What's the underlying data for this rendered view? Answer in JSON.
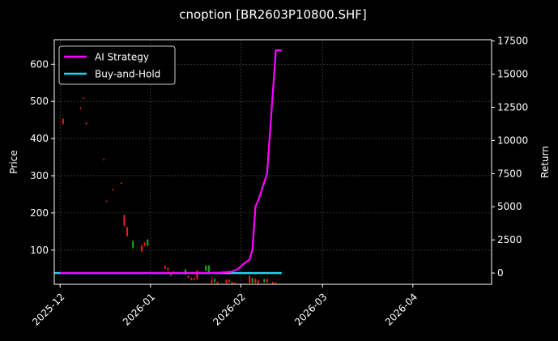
{
  "chart_data": {
    "type": "line",
    "title": "cnoption [BR2603P10800.SHF]",
    "ylabel": "Price",
    "y2label": "Return",
    "x_ticks": [
      "2025-12",
      "2026-01",
      "2026-02",
      "2026-03",
      "2026-04"
    ],
    "y_ticks": [
      100,
      200,
      300,
      400,
      500,
      600
    ],
    "y2_ticks": [
      0,
      2500,
      5000,
      7500,
      10000,
      12500,
      15000,
      17500
    ],
    "xlim": [
      "2025-11-29",
      "2026-04-28"
    ],
    "ylim": [
      8,
      666
    ],
    "y2lim": [
      -850,
      17600
    ],
    "grid": true,
    "legend": "top-left",
    "colors": {
      "background": "#000000",
      "ai_strategy": "#ff00ff",
      "buy_and_hold": "#22d3e6",
      "candle_up": "#19a319",
      "candle_down": "#e01e1e",
      "grid": "#555555"
    },
    "series": [
      {
        "name": "AI Strategy",
        "axis": "right",
        "points": [
          [
            "2025-12-01",
            0
          ],
          [
            "2026-01-01",
            0
          ],
          [
            "2026-01-21",
            0
          ],
          [
            "2026-01-25",
            30
          ],
          [
            "2026-01-29",
            100
          ],
          [
            "2026-01-31",
            300
          ],
          [
            "2026-02-01",
            500
          ],
          [
            "2026-02-02",
            700
          ],
          [
            "2026-02-04",
            1000
          ],
          [
            "2026-02-05",
            1800
          ],
          [
            "2026-02-06",
            5000
          ],
          [
            "2026-02-07",
            5500
          ],
          [
            "2026-02-10",
            7500
          ],
          [
            "2026-02-13",
            16800
          ],
          [
            "2026-02-15",
            16800
          ]
        ]
      },
      {
        "name": "Buy-and-Hold",
        "axis": "right",
        "points": [
          [
            "2025-11-29",
            0
          ],
          [
            "2026-02-15",
            0
          ]
        ]
      }
    ],
    "candles": [
      {
        "date": "2025-12-02",
        "open": 452,
        "high": 456,
        "low": 436,
        "close": 440
      },
      {
        "date": "2025-12-08",
        "open": 482,
        "high": 484,
        "low": 478,
        "close": 480
      },
      {
        "date": "2025-12-09",
        "open": 509,
        "high": 511,
        "low": 507,
        "close": 508
      },
      {
        "date": "2025-12-10",
        "open": 442,
        "high": 444,
        "low": 438,
        "close": 440
      },
      {
        "date": "2025-12-16",
        "open": 344,
        "high": 346,
        "low": 342,
        "close": 343
      },
      {
        "date": "2025-12-17",
        "open": 232,
        "high": 234,
        "low": 230,
        "close": 231
      },
      {
        "date": "2025-12-19",
        "open": 263,
        "high": 265,
        "low": 261,
        "close": 262
      },
      {
        "date": "2025-12-22",
        "open": 280,
        "high": 282,
        "low": 278,
        "close": 279
      },
      {
        "date": "2025-12-23",
        "open": 194,
        "high": 196,
        "low": 163,
        "close": 166
      },
      {
        "date": "2025-12-24",
        "open": 161,
        "high": 163,
        "low": 136,
        "close": 138
      },
      {
        "date": "2025-12-26",
        "open": 106,
        "high": 126,
        "low": 104,
        "close": 124
      },
      {
        "date": "2025-12-29",
        "open": 112,
        "high": 114,
        "low": 95,
        "close": 97
      },
      {
        "date": "2025-12-30",
        "open": 120,
        "high": 122,
        "low": 110,
        "close": 112
      },
      {
        "date": "2025-12-31",
        "open": 112,
        "high": 130,
        "low": 110,
        "close": 128
      },
      {
        "date": "2026-01-06",
        "open": 57,
        "high": 59,
        "low": 48,
        "close": 50
      },
      {
        "date": "2026-01-07",
        "open": 52,
        "high": 54,
        "low": 44,
        "close": 46
      },
      {
        "date": "2026-01-08",
        "open": 36,
        "high": 40,
        "low": 30,
        "close": 32
      },
      {
        "date": "2026-01-09",
        "open": 40,
        "high": 44,
        "low": 36,
        "close": 38
      },
      {
        "date": "2026-01-13",
        "open": 35,
        "high": 50,
        "low": 33,
        "close": 48
      },
      {
        "date": "2026-01-14",
        "open": 30,
        "high": 32,
        "low": 24,
        "close": 26
      },
      {
        "date": "2026-01-15",
        "open": 25,
        "high": 27,
        "low": 18,
        "close": 20
      },
      {
        "date": "2026-01-16",
        "open": 24,
        "high": 26,
        "low": 18,
        "close": 20
      },
      {
        "date": "2026-01-17",
        "open": 45,
        "high": 47,
        "low": 20,
        "close": 22
      },
      {
        "date": "2026-01-20",
        "open": 45,
        "high": 60,
        "low": 43,
        "close": 58
      },
      {
        "date": "2026-01-21",
        "open": 40,
        "high": 60,
        "low": 38,
        "close": 58
      },
      {
        "date": "2026-01-22",
        "open": 20,
        "high": 30,
        "low": 10,
        "close": 12
      },
      {
        "date": "2026-01-23",
        "open": 15,
        "high": 24,
        "low": 8,
        "close": 22
      },
      {
        "date": "2026-01-24",
        "open": 14,
        "high": 16,
        "low": 8,
        "close": 10
      },
      {
        "date": "2026-01-27",
        "open": 20,
        "high": 22,
        "low": 10,
        "close": 12
      },
      {
        "date": "2026-01-28",
        "open": 20,
        "high": 22,
        "low": 12,
        "close": 14
      },
      {
        "date": "2026-01-29",
        "open": 14,
        "high": 16,
        "low": 8,
        "close": 10
      },
      {
        "date": "2026-01-30",
        "open": 12,
        "high": 14,
        "low": 8,
        "close": 10
      },
      {
        "date": "2026-02-04",
        "open": 30,
        "high": 32,
        "low": 10,
        "close": 12
      },
      {
        "date": "2026-02-05",
        "open": 12,
        "high": 26,
        "low": 10,
        "close": 24
      },
      {
        "date": "2026-02-06",
        "open": 22,
        "high": 24,
        "low": 10,
        "close": 12
      },
      {
        "date": "2026-02-07",
        "open": 18,
        "high": 20,
        "low": 8,
        "close": 10
      },
      {
        "date": "2026-02-09",
        "open": 14,
        "high": 24,
        "low": 12,
        "close": 22
      },
      {
        "date": "2026-02-10",
        "open": 22,
        "high": 24,
        "low": 12,
        "close": 14
      },
      {
        "date": "2026-02-12",
        "open": 14,
        "high": 16,
        "low": 8,
        "close": 10
      },
      {
        "date": "2026-02-13",
        "open": 12,
        "high": 14,
        "low": 8,
        "close": 10
      }
    ]
  }
}
